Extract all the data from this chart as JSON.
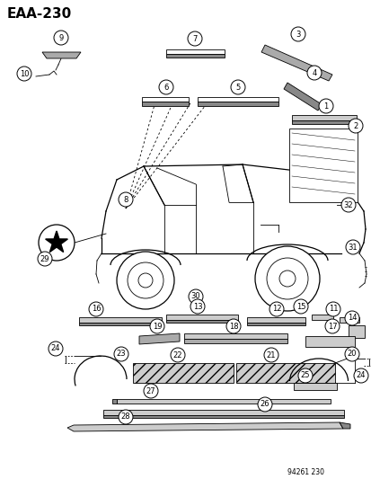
{
  "title": "EAA-230",
  "footer": "94261 230",
  "bg_color": "#ffffff",
  "fig_width": 4.14,
  "fig_height": 5.33,
  "dpi": 100
}
